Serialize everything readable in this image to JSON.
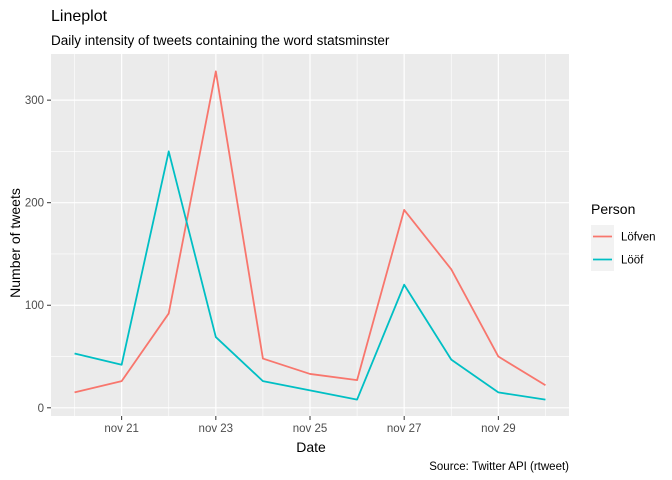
{
  "chart_data": {
    "type": "line",
    "title": "Lineplot",
    "subtitle": "Daily intensity of tweets containing the word statsminster",
    "xlabel": "Date",
    "ylabel": "Number of tweets",
    "caption": "Source: Twitter API (rtweet)",
    "x": [
      "2019-11-20",
      "2019-11-21",
      "2019-11-22",
      "2019-11-23",
      "2019-11-24",
      "2019-11-25",
      "2019-11-26",
      "2019-11-27",
      "2019-11-28",
      "2019-11-29",
      "2019-11-30"
    ],
    "x_tick_labels": [
      "nov 21",
      "nov 23",
      "nov 25",
      "nov 27",
      "nov 29"
    ],
    "x_tick_dates": [
      "2019-11-21",
      "2019-11-23",
      "2019-11-25",
      "2019-11-27",
      "2019-11-29"
    ],
    "y_ticks": [
      0,
      100,
      200,
      300
    ],
    "ylim": [
      -8,
      345
    ],
    "grid": true,
    "legend": {
      "title": "Person",
      "placement": "right"
    },
    "series": [
      {
        "name": "Löfven",
        "color": "#F8766D",
        "values": [
          15,
          26,
          92,
          328,
          48,
          33,
          27,
          193,
          135,
          50,
          22
        ]
      },
      {
        "name": "Lööf",
        "color": "#00BFC4",
        "values": [
          53,
          42,
          250,
          69,
          26,
          17,
          8,
          120,
          47,
          15,
          8
        ]
      }
    ]
  }
}
